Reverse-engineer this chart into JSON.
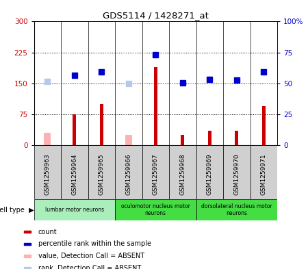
{
  "title": "GDS5114 / 1428271_at",
  "samples": [
    "GSM1259963",
    "GSM1259964",
    "GSM1259965",
    "GSM1259966",
    "GSM1259967",
    "GSM1259968",
    "GSM1259969",
    "GSM1259970",
    "GSM1259971"
  ],
  "count_values": [
    null,
    75,
    100,
    null,
    190,
    25,
    35,
    35,
    95
  ],
  "rank_values": [
    null,
    170,
    178,
    null,
    220,
    152,
    160,
    158,
    178
  ],
  "absent_count": [
    30,
    null,
    null,
    25,
    null,
    null,
    null,
    null,
    null
  ],
  "absent_rank": [
    155,
    null,
    null,
    150,
    null,
    null,
    null,
    null,
    null
  ],
  "cell_types": [
    {
      "label": "lumbar motor neurons",
      "start": 0,
      "end": 3
    },
    {
      "label": "oculomotor nucleus motor\nneurons",
      "start": 3,
      "end": 6
    },
    {
      "label": "dorsolateral nucleus motor\nneurons",
      "start": 6,
      "end": 9
    }
  ],
  "ylim_left": [
    0,
    300
  ],
  "ylim_right": [
    0,
    100
  ],
  "yticks_left": [
    0,
    75,
    150,
    225,
    300
  ],
  "yticks_right": [
    0,
    25,
    50,
    75,
    100
  ],
  "ytick_labels_left": [
    "0",
    "75",
    "150",
    "225",
    "300"
  ],
  "ytick_labels_right": [
    "0",
    "25",
    "50",
    "75",
    "100%"
  ],
  "bar_color": "#cc0000",
  "rank_color": "#0000cc",
  "absent_bar_color": "#ffb0b0",
  "absent_rank_color": "#b8c8e8",
  "cell_color_light": "#aaeebb",
  "cell_color_dark": "#44dd44",
  "sample_bg": "#d0d0d0",
  "legend_items": [
    {
      "color": "#cc0000",
      "label": "count"
    },
    {
      "color": "#0000cc",
      "label": "percentile rank within the sample"
    },
    {
      "color": "#ffb0b0",
      "label": "value, Detection Call = ABSENT"
    },
    {
      "color": "#b8c8e8",
      "label": "rank, Detection Call = ABSENT"
    }
  ]
}
